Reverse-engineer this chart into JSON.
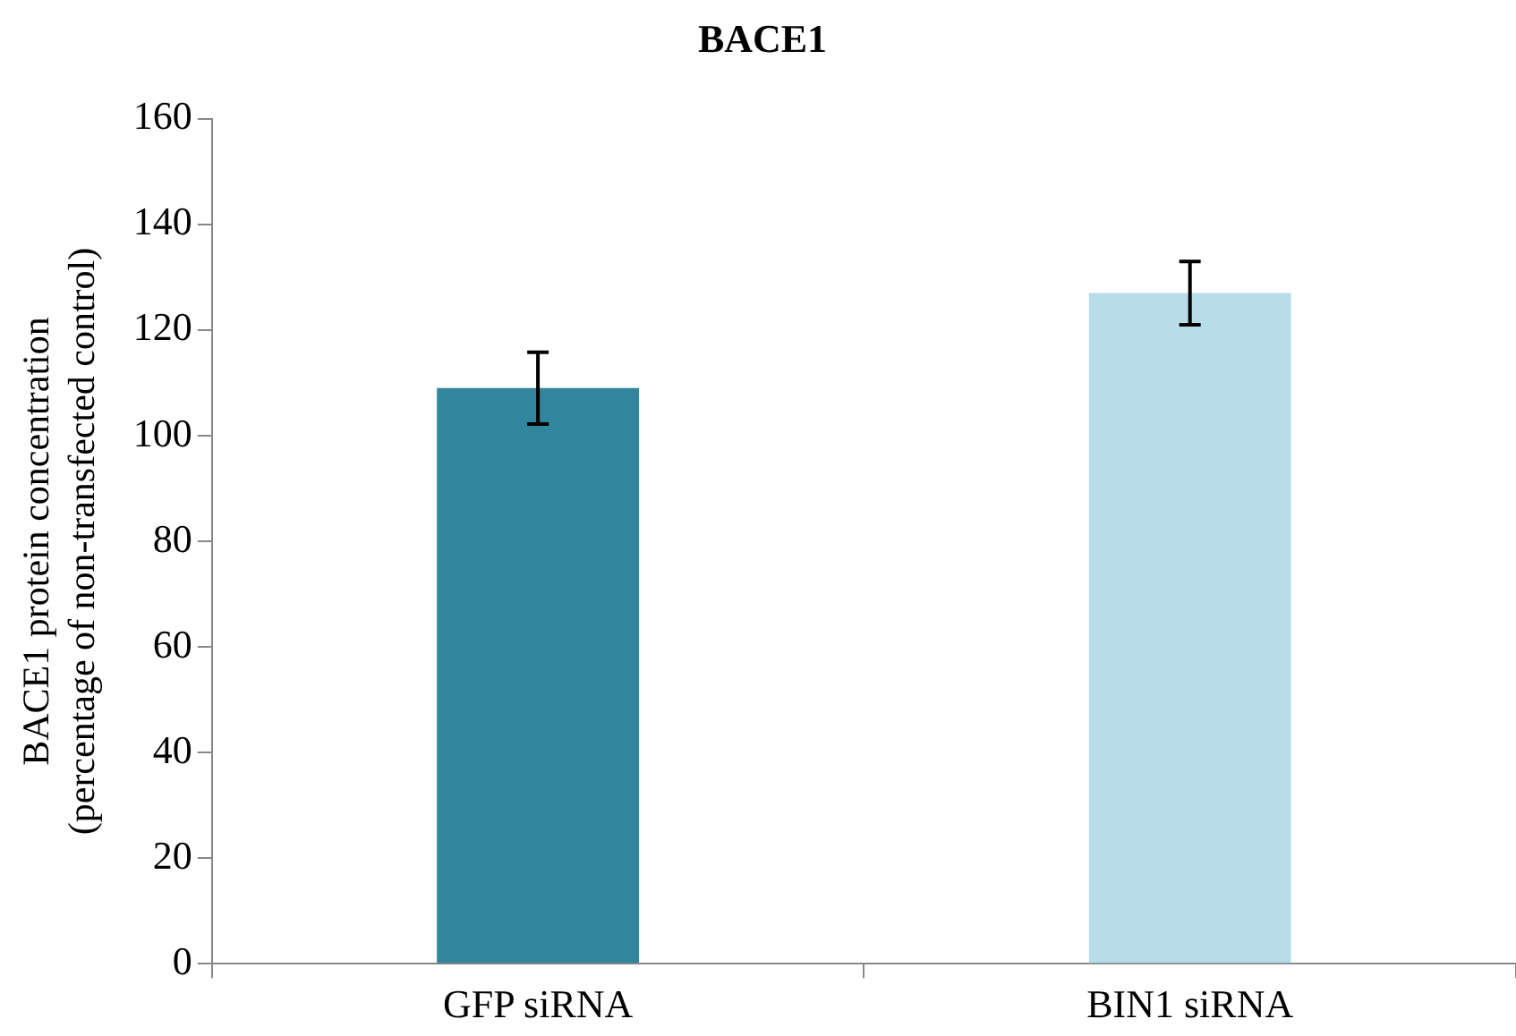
{
  "chart_data": {
    "type": "bar",
    "title": "BACE1",
    "ylabel": "BACE1 protein concentration (percentage of non-transfected control)",
    "categories": [
      "GFP siRNA",
      "BIN1 siRNA"
    ],
    "values": [
      109,
      127
    ],
    "colors": [
      "#31859c",
      "#b7dde8"
    ],
    "errors": [
      6.8,
      6
    ],
    "ylim": [
      0,
      160
    ],
    "yticks": [
      0,
      20,
      40,
      60,
      80,
      100,
      120,
      140,
      160
    ],
    "grid": false,
    "legend": false
  }
}
